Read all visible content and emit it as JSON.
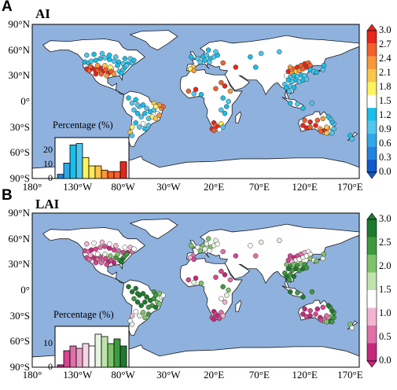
{
  "panels": [
    {
      "letter": "A",
      "title": "AI",
      "lat_labels": [
        "90°N",
        "60°N",
        "30°N",
        "0°",
        "30°S",
        "60°S",
        "90°S"
      ],
      "colorbar": {
        "ticks": [
          "3.0",
          "2.7",
          "2.4",
          "2.1",
          "1.8",
          "1.5",
          "1.2",
          "0.9",
          "0.6",
          "0.3",
          "0.0"
        ],
        "colors": [
          "#e8261c",
          "#f5602a",
          "#f99838",
          "#fbc64a",
          "#fdf45c",
          "#ffffff",
          "#19bfe8",
          "#4fc7f0",
          "#2fa8e8",
          "#2182e0",
          "#1259cc"
        ]
      },
      "histogram": {
        "title": "Percentage (%)",
        "yticks": [
          "20",
          "10",
          "0"
        ],
        "values": [
          3,
          11,
          24,
          25,
          15,
          9,
          9,
          6,
          5,
          5,
          12
        ],
        "colors": [
          "#2182e0",
          "#2fa8e8",
          "#19bfe8",
          "#4fc7f0",
          "#fdf45c",
          "#fde95a",
          "#fbc64a",
          "#f99838",
          "#f5602a",
          "#f5602a",
          "#e8261c"
        ]
      }
    },
    {
      "letter": "B",
      "title": "LAI",
      "lat_labels": [
        "90°N",
        "60°N",
        "30°N",
        "0°",
        "30°S",
        "60°S",
        "90°S"
      ],
      "colorbar": {
        "ticks": [
          "3.0",
          "2.5",
          "2.0",
          "1.5",
          "1.0",
          "0.5",
          "0.0"
        ],
        "colors": [
          "#1e7a2e",
          "#3e9a3e",
          "#7fc26a",
          "#bfe3ad",
          "#ffffff",
          "#f2b4d2",
          "#e070a8",
          "#c7277b"
        ]
      },
      "histogram": {
        "title": "Percentage (%)",
        "yticks": [
          "10",
          "0"
        ],
        "values": [
          1,
          7,
          9,
          8,
          10,
          9,
          14,
          13,
          10,
          12,
          9
        ],
        "colors": [
          "#c7277b",
          "#d6478e",
          "#e070a8",
          "#eaa0c6",
          "#f6d4e6",
          "#ffffff",
          "#e6f4df",
          "#bfe3ad",
          "#7fc26a",
          "#3e9a3e",
          "#1e7a2e"
        ]
      }
    }
  ],
  "lon_labels": [
    "180°",
    "130°W",
    "80°W",
    "30°W",
    "20°E",
    "70°E",
    "120°E",
    "170°E"
  ]
}
